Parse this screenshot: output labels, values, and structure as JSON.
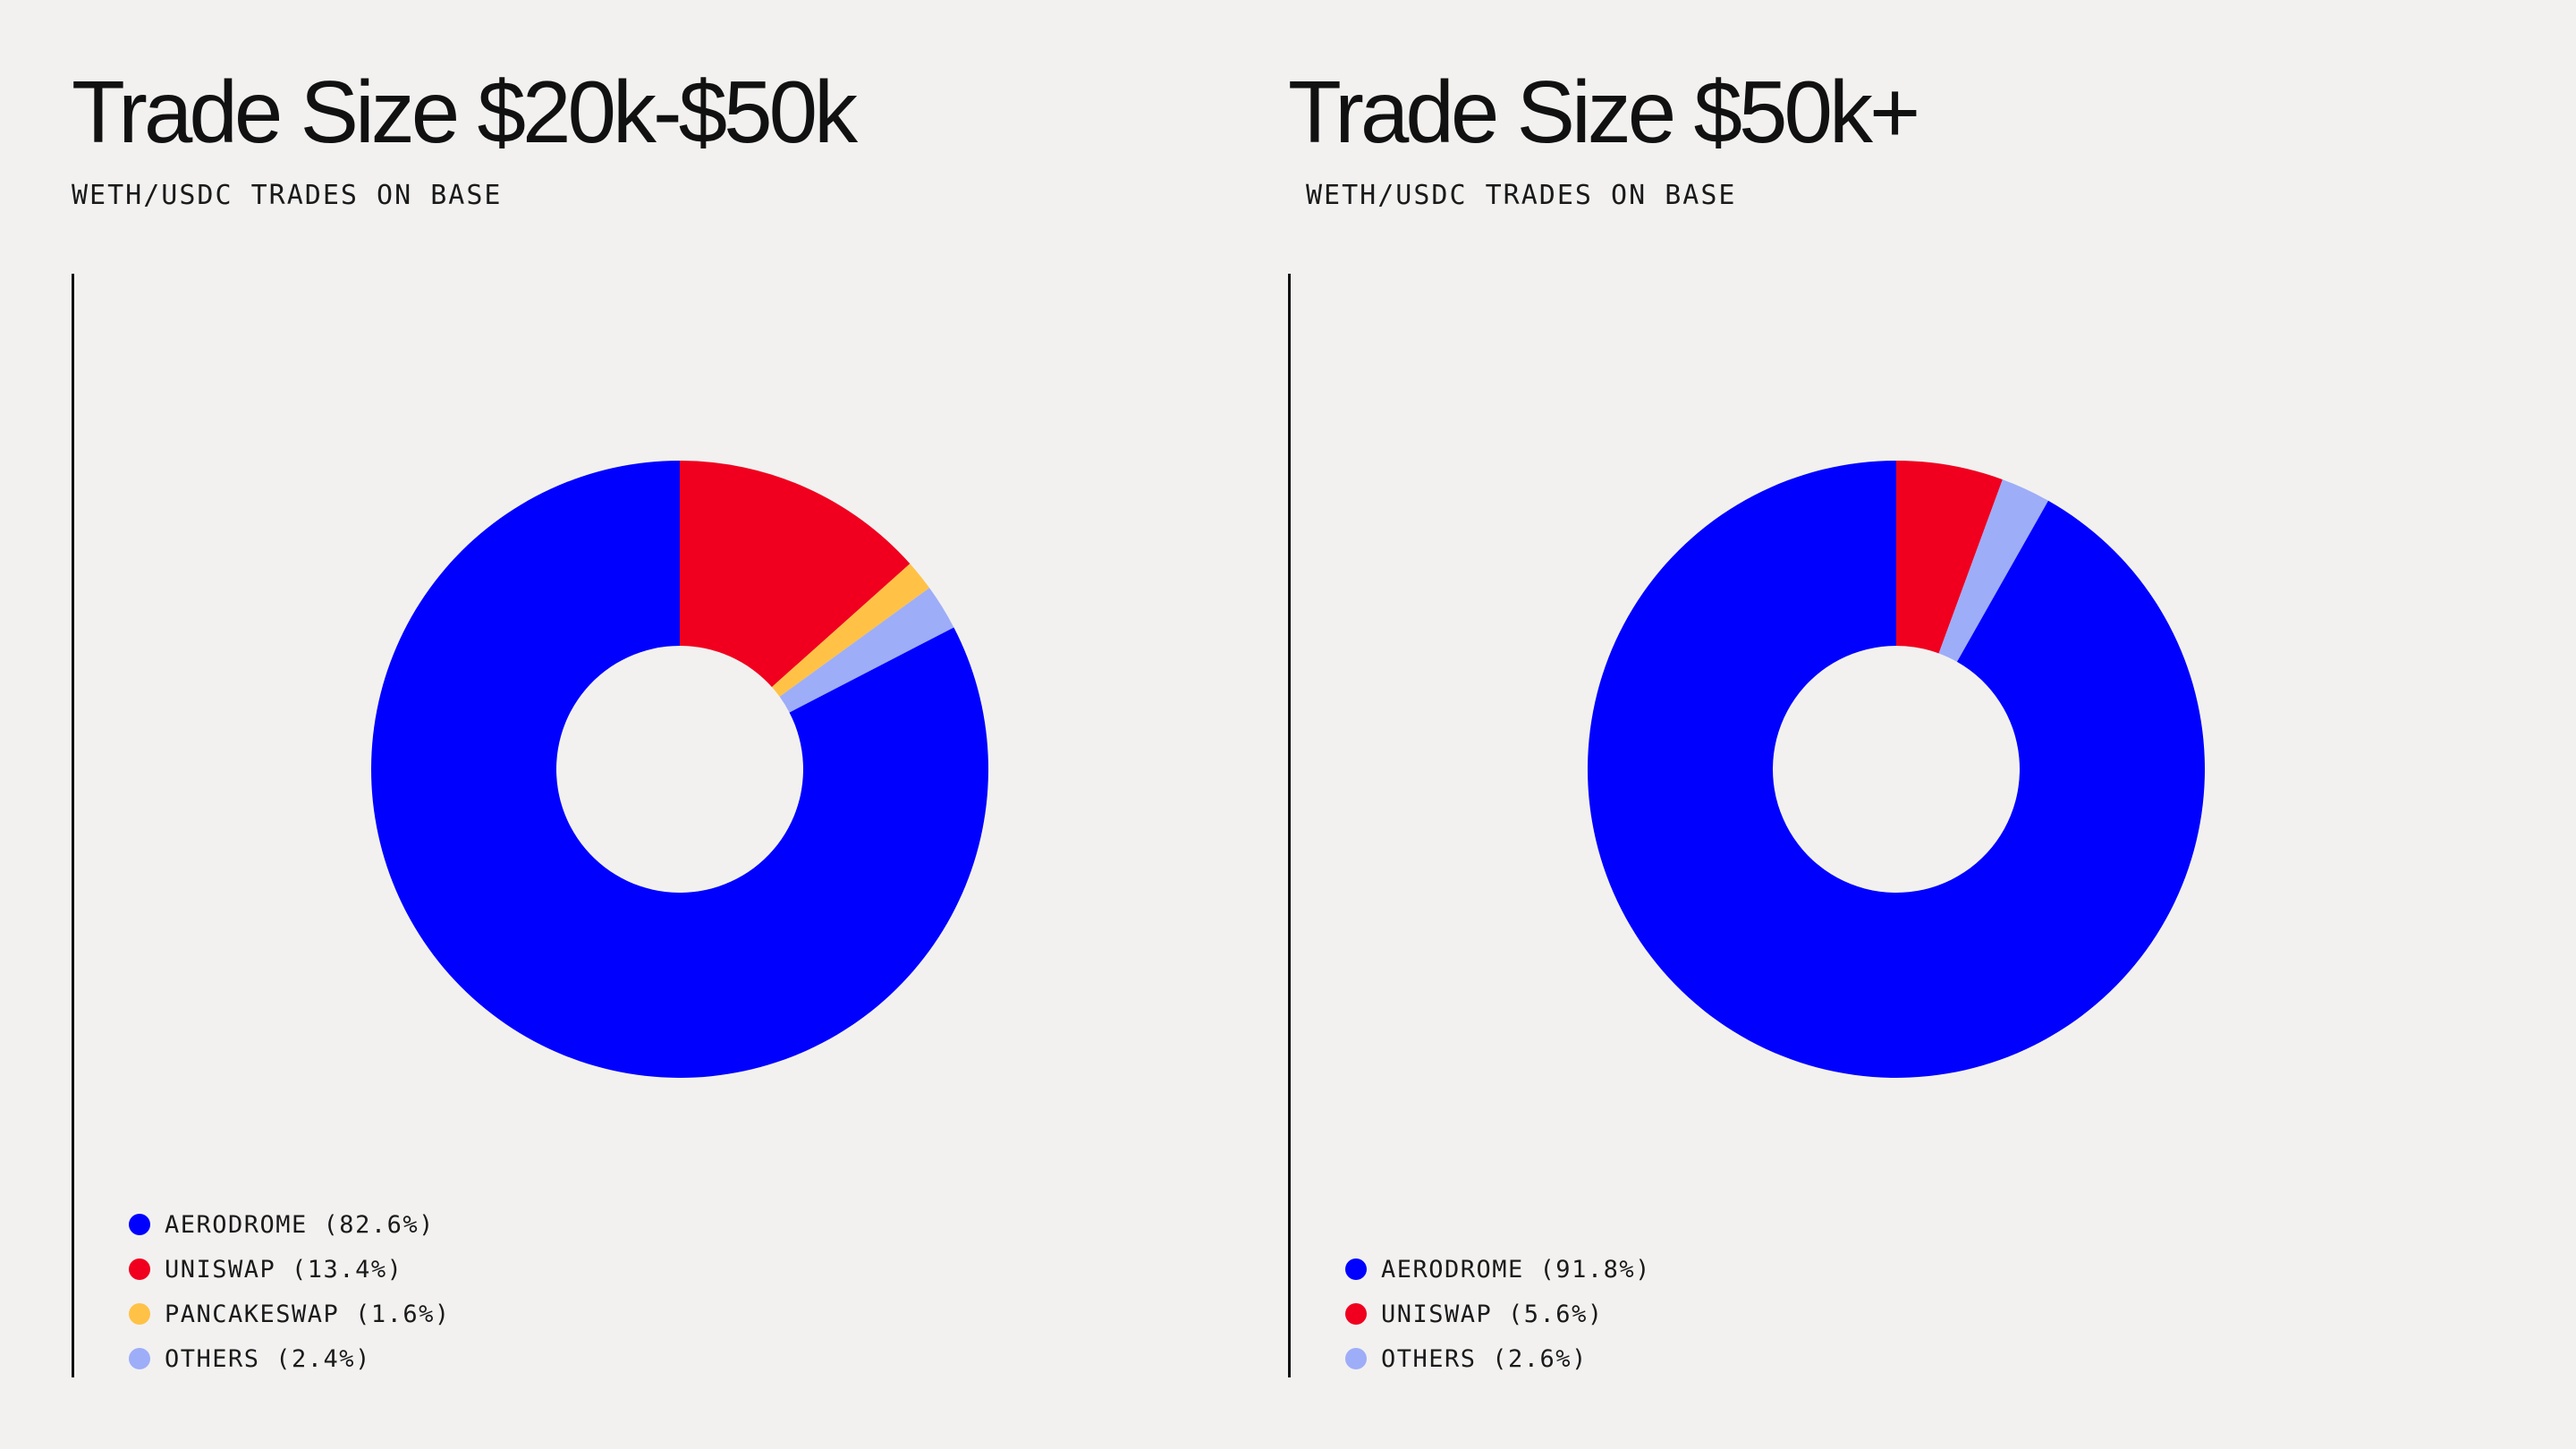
{
  "colors": {
    "aerodrome": "#0000ff",
    "uniswap": "#f0001e",
    "pancakeswap": "#ffc247",
    "others": "#9eadf8",
    "hole": "#f2f1f0"
  },
  "chart_data": [
    {
      "type": "pie",
      "title": "Trade Size $20k-$50k",
      "subtitle": "WETH/USDC TRADES ON BASE",
      "donut": true,
      "legend_position": "bottom-left",
      "slices": [
        {
          "label": "UNISWAP (13.4%)",
          "name": "UNISWAP",
          "value": 13.4,
          "color": "#f0001e"
        },
        {
          "label": "PANCAKESWAP (1.6%)",
          "name": "PANCAKESWAP",
          "value": 1.6,
          "color": "#ffc247"
        },
        {
          "label": "OTHERS (2.4%)",
          "name": "OTHERS",
          "value": 2.4,
          "color": "#9eadf8"
        },
        {
          "label": "AERODROME (82.6%)",
          "name": "AERODROME",
          "value": 82.6,
          "color": "#0000ff"
        }
      ],
      "legend": [
        {
          "label": "AERODROME (82.6%)",
          "color": "#0000ff"
        },
        {
          "label": "UNISWAP (13.4%)",
          "color": "#f0001e"
        },
        {
          "label": "PANCAKESWAP (1.6%)",
          "color": "#ffc247"
        },
        {
          "label": "OTHERS (2.4%)",
          "color": "#9eadf8"
        }
      ]
    },
    {
      "type": "pie",
      "title": "Trade Size $50k+",
      "subtitle": "WETH/USDC TRADES ON BASE",
      "donut": true,
      "legend_position": "bottom-left",
      "slices": [
        {
          "label": "UNISWAP (5.6%)",
          "name": "UNISWAP",
          "value": 5.6,
          "color": "#f0001e"
        },
        {
          "label": "OTHERS (2.6%)",
          "name": "OTHERS",
          "value": 2.6,
          "color": "#9eadf8"
        },
        {
          "label": "AERODROME (91.8%)",
          "name": "AERODROME",
          "value": 91.8,
          "color": "#0000ff"
        }
      ],
      "legend": [
        {
          "label": "AERODROME (91.8%)",
          "color": "#0000ff"
        },
        {
          "label": "UNISWAP (5.6%)",
          "color": "#f0001e"
        },
        {
          "label": "OTHERS (2.6%)",
          "color": "#9eadf8"
        }
      ]
    }
  ]
}
